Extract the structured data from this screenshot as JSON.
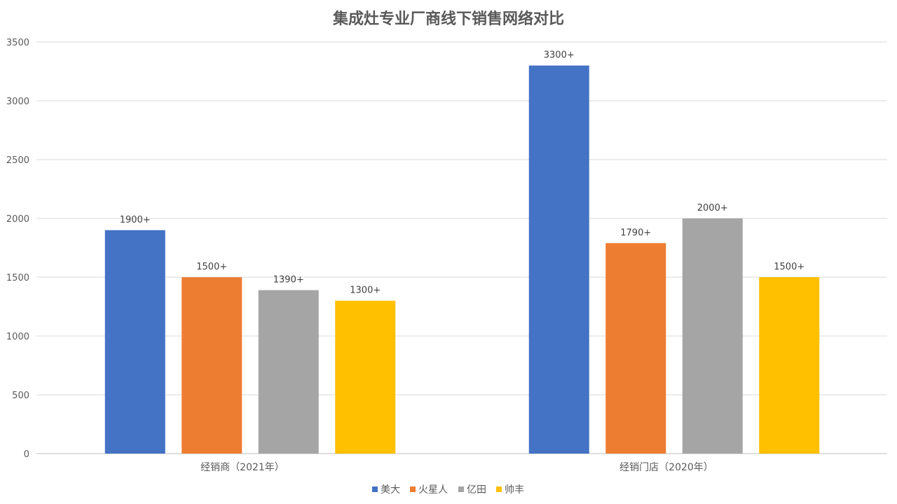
{
  "chart_data": {
    "type": "bar",
    "title": "集成灶专业厂商线下销售网络对比",
    "categories": [
      "经销商（2021年）",
      "经销门店（2020年）"
    ],
    "series": [
      {
        "name": "美大",
        "color": "#4472C4",
        "values": [
          1900,
          3300
        ],
        "labels": [
          "1900+",
          "3300+"
        ]
      },
      {
        "name": "火星人",
        "color": "#ED7D31",
        "values": [
          1500,
          1790
        ],
        "labels": [
          "1500+",
          "1790+"
        ]
      },
      {
        "name": "亿田",
        "color": "#A5A5A5",
        "values": [
          1390,
          2000
        ],
        "labels": [
          "1390+",
          "2000+"
        ]
      },
      {
        "name": "帅丰",
        "color": "#FFC000",
        "values": [
          1300,
          1500
        ],
        "labels": [
          "1300+",
          "1500+"
        ]
      }
    ],
    "xlabel": "",
    "ylabel": "",
    "ylim": [
      0,
      3500
    ],
    "yticks": [
      "0",
      "500",
      "1000",
      "1500",
      "2000",
      "2500",
      "3000",
      "3500"
    ],
    "grid": true,
    "legend": "bottom"
  }
}
